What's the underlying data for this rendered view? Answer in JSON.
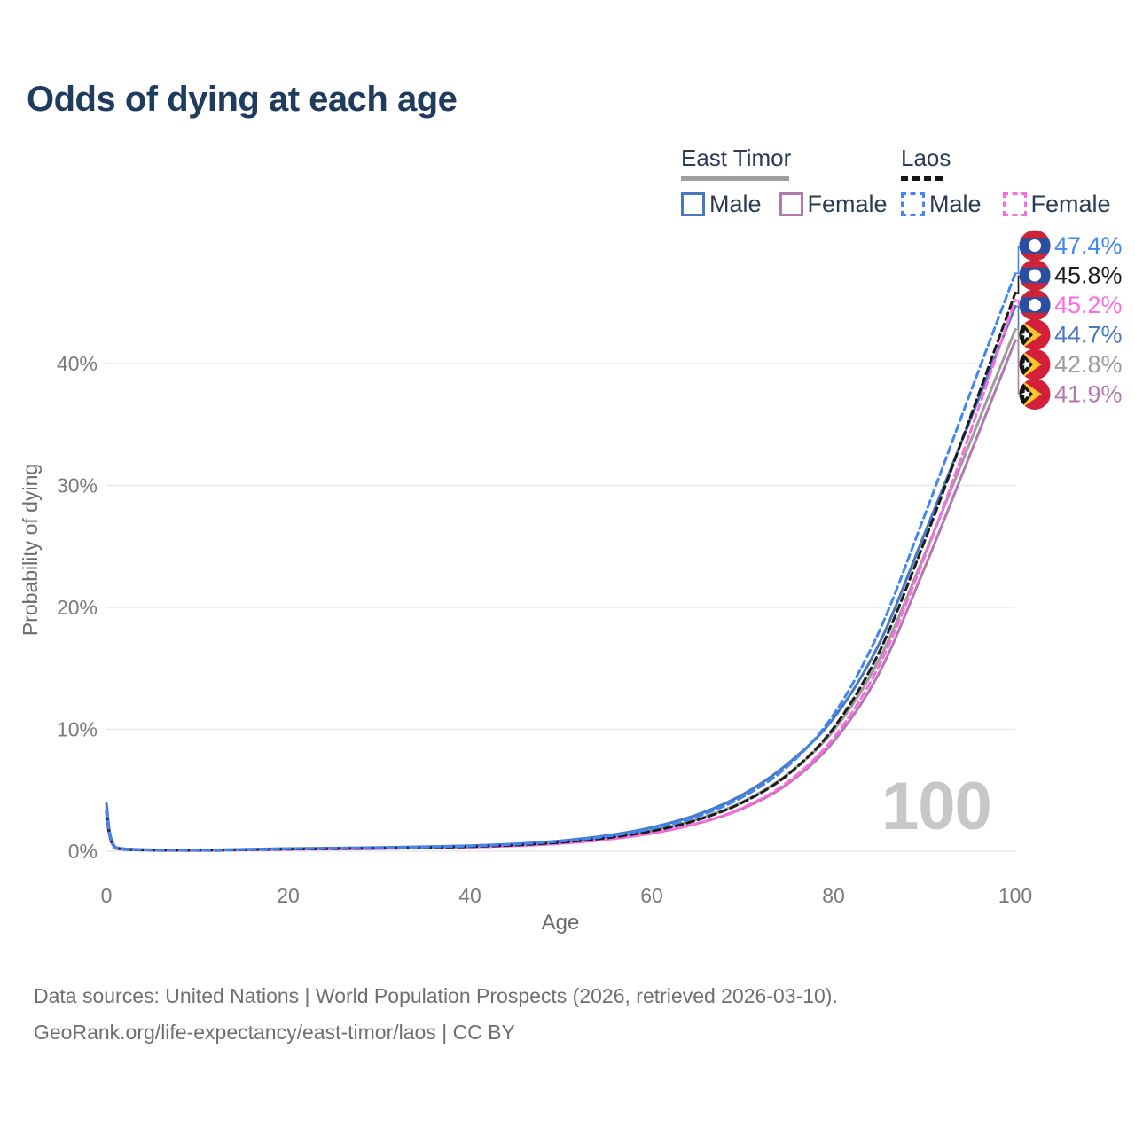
{
  "title": "Odds of dying at each age",
  "watermark": "100",
  "legend": {
    "groups": [
      {
        "label": "East Timor",
        "line_style": "solid",
        "underline_color": "#9e9e9e",
        "items": [
          {
            "label": "Male",
            "color": "#4878c0"
          },
          {
            "label": "Female",
            "color": "#b279ae"
          }
        ]
      },
      {
        "label": "Laos",
        "line_style": "dashed",
        "underline_color": "#161616",
        "items": [
          {
            "label": "Male",
            "color": "#4285f4"
          },
          {
            "label": "Female",
            "color": "#ff6ae3"
          }
        ]
      }
    ]
  },
  "chart_data": {
    "type": "line",
    "title": "Odds of dying at each age",
    "xlabel": "Age",
    "ylabel": "Probability of dying",
    "xlim": [
      0,
      100
    ],
    "ylim": [
      0,
      48
    ],
    "grid": "horizontal",
    "x_ticks": [
      {
        "value": 0,
        "label": "0"
      },
      {
        "value": 20,
        "label": "20"
      },
      {
        "value": 40,
        "label": "40"
      },
      {
        "value": 60,
        "label": "60"
      },
      {
        "value": 80,
        "label": "80"
      },
      {
        "value": 100,
        "label": "100"
      }
    ],
    "y_ticks": [
      {
        "value": 0,
        "label": "0%"
      },
      {
        "value": 10,
        "label": "10%"
      },
      {
        "value": 20,
        "label": "20%"
      },
      {
        "value": 30,
        "label": "30%"
      },
      {
        "value": 40,
        "label": "40%"
      }
    ],
    "x": [
      0,
      1,
      5,
      10,
      15,
      20,
      25,
      30,
      35,
      40,
      45,
      50,
      55,
      60,
      65,
      70,
      75,
      80,
      85,
      90,
      95,
      100
    ],
    "series": [
      {
        "name": "East Timor Female",
        "country": "east-timor",
        "sex": "female",
        "color": "#b279ae",
        "dash": null,
        "end_label": "41.9%",
        "values": [
          3.3,
          0.26,
          0.1,
          0.08,
          0.11,
          0.16,
          0.19,
          0.22,
          0.28,
          0.35,
          0.46,
          0.66,
          0.98,
          1.48,
          2.28,
          3.5,
          5.55,
          9.0,
          14.6,
          23.2,
          32.5,
          41.9
        ]
      },
      {
        "name": "East Timor Total",
        "country": "east-timor",
        "sex": "total",
        "color": "#9c9c9c",
        "dash": null,
        "end_label": "42.8%",
        "values": [
          3.6,
          0.29,
          0.11,
          0.09,
          0.13,
          0.19,
          0.23,
          0.27,
          0.32,
          0.4,
          0.53,
          0.76,
          1.12,
          1.7,
          2.62,
          4.05,
          6.35,
          9.9,
          15.7,
          24.3,
          33.5,
          42.8
        ]
      },
      {
        "name": "East Timor Male",
        "country": "east-timor",
        "sex": "male",
        "color": "#4878c0",
        "dash": null,
        "end_label": "44.7%",
        "values": [
          3.9,
          0.32,
          0.12,
          0.1,
          0.15,
          0.22,
          0.26,
          0.31,
          0.37,
          0.46,
          0.61,
          0.86,
          1.28,
          1.95,
          3.0,
          4.65,
          7.2,
          10.9,
          17.0,
          26.0,
          35.3,
          44.7
        ]
      },
      {
        "name": "Laos Female",
        "country": "laos",
        "sex": "female",
        "color": "#ff6ae3",
        "dash": "8 5",
        "end_label": "45.2%",
        "values": [
          2.9,
          0.23,
          0.08,
          0.06,
          0.1,
          0.14,
          0.17,
          0.2,
          0.26,
          0.33,
          0.44,
          0.63,
          0.95,
          1.46,
          2.27,
          3.56,
          5.7,
          9.3,
          15.2,
          24.1,
          34.3,
          45.2
        ]
      },
      {
        "name": "Laos Total",
        "country": "laos",
        "sex": "total",
        "color": "#1c1c1c",
        "dash": "8 5",
        "end_label": "45.8%",
        "values": [
          3.2,
          0.26,
          0.09,
          0.07,
          0.12,
          0.17,
          0.21,
          0.25,
          0.3,
          0.38,
          0.51,
          0.73,
          1.09,
          1.66,
          2.56,
          4.0,
          6.3,
          10.1,
          16.3,
          25.4,
          35.5,
          45.8
        ]
      },
      {
        "name": "Laos Male",
        "country": "laos",
        "sex": "male",
        "color": "#4285f4",
        "dash": "8 5",
        "end_label": "47.4%",
        "values": [
          3.4,
          0.28,
          0.1,
          0.08,
          0.14,
          0.2,
          0.24,
          0.28,
          0.34,
          0.43,
          0.58,
          0.82,
          1.22,
          1.85,
          2.85,
          4.45,
          7.0,
          11.2,
          18.0,
          27.5,
          37.5,
          47.4
        ]
      }
    ],
    "legend_position": "top-right"
  },
  "flags": {
    "laos": {
      "red": "#ce2438",
      "blue": "#2a4fa2",
      "white": "#ffffff"
    },
    "east_timor": {
      "red": "#d31f3a",
      "yellow": "#ffc72c",
      "black": "#141414",
      "white": "#ffffff"
    }
  },
  "footer": {
    "line1": "Data sources: United Nations | World Population Prospects (2026, retrieved 2026-03-10).",
    "line2": "GeoRank.org/life-expectancy/east-timor/laos | CC BY"
  }
}
